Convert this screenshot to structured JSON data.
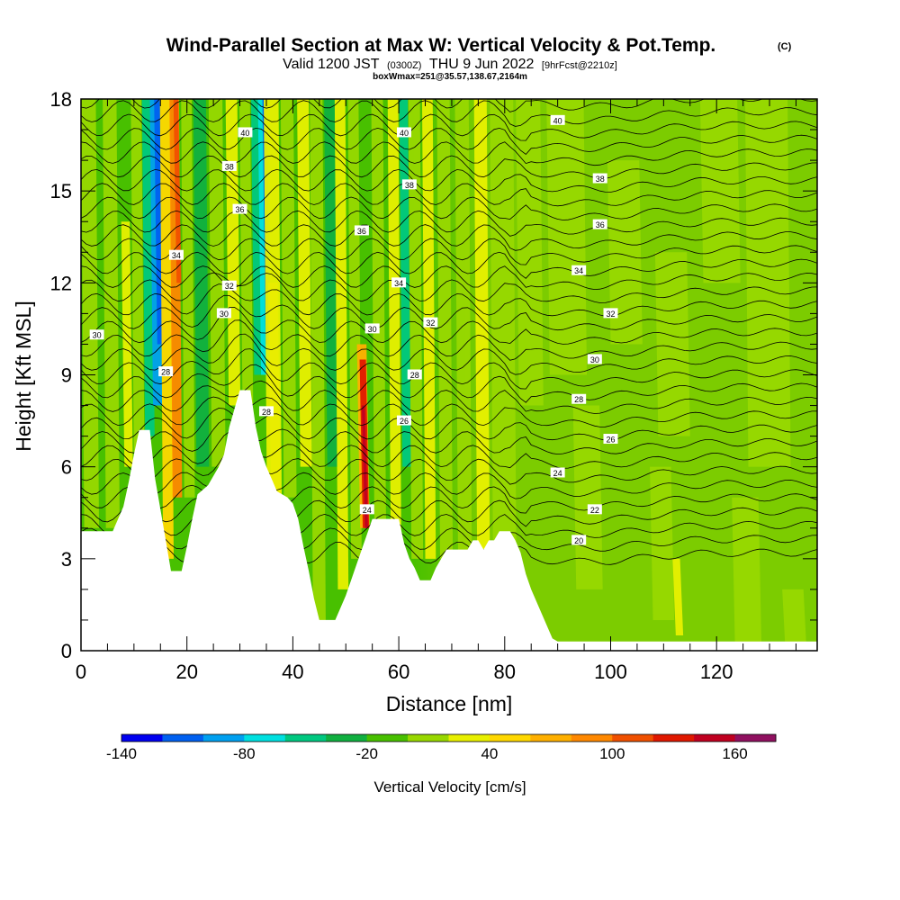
{
  "title": {
    "main": "Wind-Parallel Section at Max W: Vertical Velocity & Pot.Temp.",
    "copyright": "(C)",
    "valid_prefix": "Valid 1200 JST",
    "valid_utc": "(0300Z)",
    "valid_date": "THU 9 Jun 2022",
    "forecast": "[9hrFcst@2210z]",
    "boxwmax": "boxWmax=251@35.57,138.67,2164m"
  },
  "chart_data": {
    "type": "heatmap",
    "xlabel": "Distance [nm]",
    "ylabel": "Height [Kft MSL]",
    "xlim": [
      0,
      139
    ],
    "ylim": [
      0,
      18
    ],
    "x_ticks": [
      0,
      20,
      40,
      60,
      80,
      100,
      120
    ],
    "y_ticks": [
      0,
      3,
      6,
      9,
      12,
      15,
      18
    ],
    "colorbar": {
      "title": "Vertical Velocity [cm/s]",
      "min": -140,
      "max": 180,
      "step": 20,
      "labeled_ticks": [
        -140,
        -80,
        -20,
        40,
        100,
        160
      ],
      "colors": [
        "#0000f0",
        "#0060f0",
        "#00a0f0",
        "#00e0e0",
        "#00c880",
        "#10b040",
        "#48c000",
        "#98d800",
        "#e8f000",
        "#ffd800",
        "#ffb000",
        "#ff8800",
        "#f05000",
        "#e01800",
        "#c00020",
        "#901060"
      ]
    },
    "terrain_kft": [
      [
        0,
        3.9
      ],
      [
        4,
        3.9
      ],
      [
        6,
        3.9
      ],
      [
        7,
        4.3
      ],
      [
        8,
        4.7
      ],
      [
        9,
        5.5
      ],
      [
        10,
        6.4
      ],
      [
        11,
        7.2
      ],
      [
        13,
        7.2
      ],
      [
        13.5,
        6.4
      ],
      [
        14,
        5.6
      ],
      [
        15,
        4.6
      ],
      [
        16,
        3.6
      ],
      [
        17,
        2.6
      ],
      [
        19,
        2.6
      ],
      [
        20,
        3.4
      ],
      [
        21,
        4.3
      ],
      [
        22,
        5.1
      ],
      [
        24,
        5.4
      ],
      [
        25,
        5.7
      ],
      [
        26,
        6.0
      ],
      [
        27,
        6.4
      ],
      [
        28,
        7.3
      ],
      [
        30,
        8.5
      ],
      [
        32,
        8.5
      ],
      [
        33,
        7.3
      ],
      [
        34,
        6.5
      ],
      [
        35,
        6.0
      ],
      [
        36,
        5.6
      ],
      [
        37,
        5.2
      ],
      [
        39,
        5.0
      ],
      [
        40,
        4.8
      ],
      [
        41,
        4.3
      ],
      [
        42,
        3.4
      ],
      [
        43,
        2.6
      ],
      [
        44,
        1.7
      ],
      [
        45,
        1.0
      ],
      [
        48,
        1.0
      ],
      [
        49,
        1.4
      ],
      [
        50,
        1.8
      ],
      [
        51,
        2.3
      ],
      [
        52,
        2.8
      ],
      [
        53,
        3.3
      ],
      [
        54,
        3.8
      ],
      [
        55,
        4.3
      ],
      [
        60,
        4.3
      ],
      [
        61,
        3.5
      ],
      [
        62,
        3.0
      ],
      [
        63,
        2.7
      ],
      [
        64,
        2.3
      ],
      [
        66,
        2.3
      ],
      [
        67,
        2.7
      ],
      [
        68,
        3.0
      ],
      [
        69,
        3.3
      ],
      [
        73,
        3.3
      ],
      [
        74,
        3.6
      ],
      [
        75,
        3.6
      ],
      [
        76,
        3.3
      ],
      [
        77,
        3.6
      ],
      [
        78,
        3.6
      ],
      [
        79,
        3.9
      ],
      [
        81,
        3.9
      ],
      [
        82,
        3.6
      ],
      [
        83,
        3.2
      ],
      [
        84,
        2.5
      ],
      [
        85,
        2.0
      ],
      [
        86,
        1.6
      ],
      [
        87,
        1.2
      ],
      [
        88,
        0.8
      ],
      [
        89,
        0.4
      ],
      [
        90,
        0.3
      ],
      [
        139,
        0.3
      ]
    ],
    "theta_contour_labels": [
      {
        "value": "40",
        "x": 31,
        "y": 16.9
      },
      {
        "value": "40",
        "x": 61,
        "y": 16.9
      },
      {
        "value": "40",
        "x": 90,
        "y": 17.3
      },
      {
        "value": "38",
        "x": 28,
        "y": 15.8
      },
      {
        "value": "38",
        "x": 62,
        "y": 15.2
      },
      {
        "value": "38",
        "x": 98,
        "y": 15.4
      },
      {
        "value": "36",
        "x": 30,
        "y": 14.4
      },
      {
        "value": "36",
        "x": 53,
        "y": 13.7
      },
      {
        "value": "36",
        "x": 98,
        "y": 13.9
      },
      {
        "value": "34",
        "x": 18,
        "y": 12.9
      },
      {
        "value": "34",
        "x": 60,
        "y": 12.0
      },
      {
        "value": "34",
        "x": 94,
        "y": 12.4
      },
      {
        "value": "32",
        "x": 28,
        "y": 11.9
      },
      {
        "value": "32",
        "x": 66,
        "y": 10.7
      },
      {
        "value": "32",
        "x": 100,
        "y": 11.0
      },
      {
        "value": "30",
        "x": 3,
        "y": 10.3
      },
      {
        "value": "30",
        "x": 27,
        "y": 11.0
      },
      {
        "value": "30",
        "x": 55,
        "y": 10.5
      },
      {
        "value": "30",
        "x": 97,
        "y": 9.5
      },
      {
        "value": "28",
        "x": 16,
        "y": 9.1
      },
      {
        "value": "28",
        "x": 63,
        "y": 9.0
      },
      {
        "value": "28",
        "x": 94,
        "y": 8.2
      },
      {
        "value": "28",
        "x": 35,
        "y": 7.8
      },
      {
        "value": "26",
        "x": 61,
        "y": 7.5
      },
      {
        "value": "26",
        "x": 100,
        "y": 6.9
      },
      {
        "value": "24",
        "x": 90,
        "y": 5.8
      },
      {
        "value": "24",
        "x": 54,
        "y": 4.6
      },
      {
        "value": "22",
        "x": 97,
        "y": 4.6
      },
      {
        "value": "20",
        "x": 94,
        "y": 3.6
      }
    ]
  }
}
